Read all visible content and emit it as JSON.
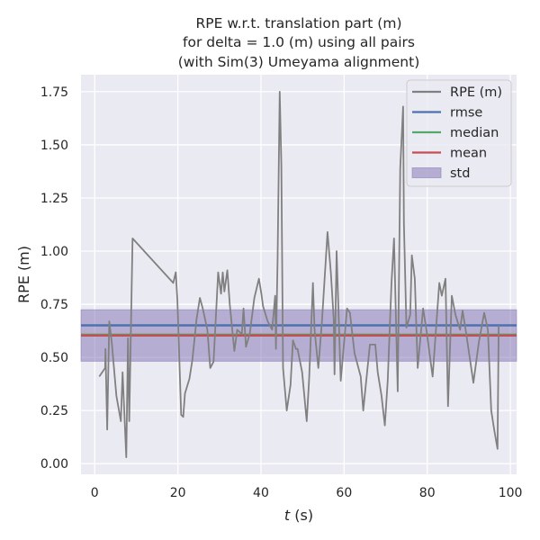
{
  "chart_data": {
    "type": "line",
    "title": [
      "RPE w.r.t. translation part (m)",
      "for delta = 1.0 (m) using all pairs",
      "(with Sim(3) Umeyama alignment)"
    ],
    "xlabel_var": "t",
    "xlabel_unit": " (s)",
    "ylabel": "RPE (m)",
    "xlim": [
      -3.3,
      101.5
    ],
    "ylim": [
      -0.05,
      1.83
    ],
    "xticks": [
      0,
      20,
      40,
      60,
      80,
      100
    ],
    "xtick_labels": [
      "0",
      "20",
      "40",
      "60",
      "80",
      "100"
    ],
    "yticks": [
      0,
      0.25,
      0.5,
      0.75,
      1.0,
      1.25,
      1.5,
      1.75
    ],
    "ytick_labels": [
      "0.00",
      "0.25",
      "0.50",
      "0.75",
      "1.00",
      "1.25",
      "1.50",
      "1.75"
    ],
    "grid": true,
    "legend_position": "top-right",
    "legend": [
      "RPE (m)",
      "rmse",
      "median",
      "mean",
      "std"
    ],
    "colors": {
      "rpe": "#808080",
      "rmse": "#4c72b0",
      "median": "#55a868",
      "mean": "#c44e52",
      "std": "#8172b2",
      "background": "#eaeaf2"
    },
    "stats": {
      "rmse": 0.651,
      "median": 0.607,
      "mean": 0.603,
      "std": 0.121
    },
    "series": [
      {
        "name": "RPE (m)",
        "x": [
          1.1,
          2.5,
          2.6,
          3.0,
          3.5,
          4.1,
          5.2,
          6.3,
          6.7,
          7.6,
          8.0,
          8.3,
          9.1,
          18.9,
          19.5,
          19.9,
          20.8,
          21.3,
          21.7,
          22.8,
          23.5,
          24.5,
          25.3,
          26.0,
          27.1,
          27.8,
          28.6,
          29.7,
          30.4,
          30.8,
          31.2,
          31.9,
          32.5,
          33.6,
          34.3,
          35.4,
          35.8,
          36.4,
          37.3,
          38.4,
          39.5,
          40.1,
          40.5,
          41.6,
          42.7,
          43.4,
          43.6,
          44.0,
          44.5,
          44.9,
          45.3,
          46.2,
          47.1,
          47.7,
          48.4,
          48.8,
          49.9,
          51.0,
          51.6,
          52.5,
          52.9,
          53.8,
          54.7,
          56.0,
          56.8,
          57.5,
          57.7,
          58.2,
          59.2,
          60.7,
          61.4,
          62.5,
          64.0,
          64.6,
          66.2,
          67.5,
          68.1,
          69.0,
          69.8,
          70.5,
          71.4,
          72.0,
          72.9,
          73.5,
          74.2,
          74.4,
          75.0,
          75.9,
          76.3,
          77.0,
          77.7,
          79.0,
          79.8,
          81.3,
          82.9,
          83.5,
          84.4,
          85.0,
          85.9,
          86.8,
          87.9,
          88.5,
          89.4,
          91.1,
          92.4,
          93.7,
          94.6,
          95.4,
          96.1,
          96.9,
          97.2
        ],
        "y": [
          0.41,
          0.45,
          0.54,
          0.16,
          0.67,
          0.57,
          0.32,
          0.2,
          0.43,
          0.03,
          0.59,
          0.2,
          1.06,
          0.85,
          0.9,
          0.77,
          0.23,
          0.22,
          0.33,
          0.4,
          0.49,
          0.68,
          0.78,
          0.73,
          0.63,
          0.45,
          0.48,
          0.9,
          0.8,
          0.9,
          0.81,
          0.91,
          0.75,
          0.53,
          0.63,
          0.61,
          0.73,
          0.55,
          0.61,
          0.78,
          0.87,
          0.8,
          0.74,
          0.67,
          0.63,
          0.79,
          0.54,
          0.95,
          1.75,
          1.41,
          0.45,
          0.25,
          0.37,
          0.58,
          0.54,
          0.54,
          0.43,
          0.2,
          0.4,
          0.85,
          0.63,
          0.45,
          0.68,
          1.09,
          0.9,
          0.68,
          0.42,
          1.0,
          0.39,
          0.73,
          0.71,
          0.52,
          0.41,
          0.25,
          0.56,
          0.56,
          0.43,
          0.32,
          0.18,
          0.39,
          0.85,
          1.06,
          0.34,
          1.39,
          1.68,
          1.13,
          0.64,
          0.7,
          0.98,
          0.87,
          0.45,
          0.73,
          0.63,
          0.41,
          0.85,
          0.79,
          0.87,
          0.27,
          0.79,
          0.7,
          0.63,
          0.72,
          0.61,
          0.38,
          0.57,
          0.71,
          0.63,
          0.25,
          0.16,
          0.07,
          0.65
        ]
      }
    ]
  }
}
